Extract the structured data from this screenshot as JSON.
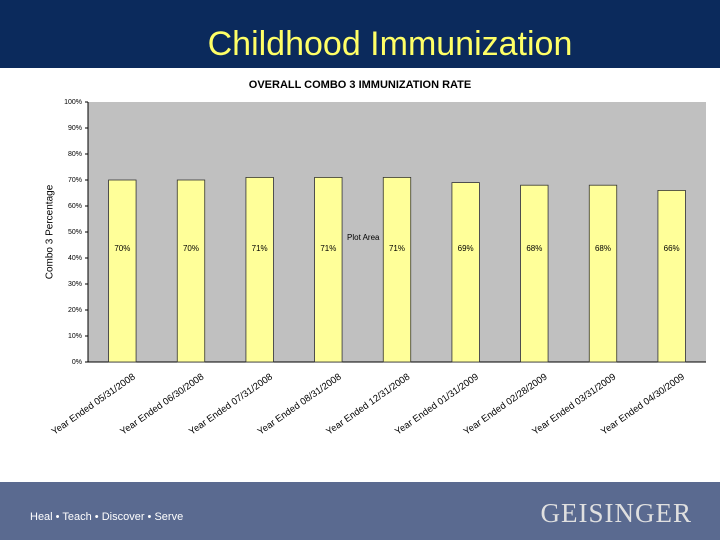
{
  "slide_title": "Childhood Immunization",
  "footer": {
    "tagline": "Heal • Teach • Discover • Serve",
    "brand": "GEISINGER"
  },
  "chart_data": {
    "type": "bar",
    "title": "OVERALL COMBO 3 IMMUNIZATION RATE",
    "y_label": "Combo 3 Percentage",
    "annotation": "Plot Area",
    "categories": [
      "Year Ended 05/31/2008",
      "Year Ended 06/30/2008",
      "Year Ended 07/31/2008",
      "Year Ended 08/31/2008",
      "Year Ended 12/31/2008",
      "Year Ended 01/31/2009",
      "Year Ended 02/28/2009",
      "Year Ended 03/31/2009",
      "Year Ended 04/30/2009"
    ],
    "values": [
      70,
      70,
      71,
      71,
      71,
      69,
      68,
      68,
      66
    ],
    "value_labels": [
      "70%",
      "70%",
      "71%",
      "71%",
      "71%",
      "69%",
      "68%",
      "68%",
      "66%"
    ],
    "color": "#ffff99",
    "ylim": [
      0,
      100
    ],
    "yticks": [
      {
        "value": 0,
        "label": "0%"
      },
      {
        "value": 10,
        "label": "10%"
      },
      {
        "value": 20,
        "label": "20%"
      },
      {
        "value": 30,
        "label": "30%"
      },
      {
        "value": 40,
        "label": "40%"
      },
      {
        "value": 50,
        "label": "50%"
      },
      {
        "value": 60,
        "label": "60%"
      },
      {
        "value": 70,
        "label": "70%"
      },
      {
        "value": 80,
        "label": "80%"
      },
      {
        "value": 90,
        "label": "90%"
      },
      {
        "value": 100,
        "label": "100%"
      }
    ],
    "grid": false
  }
}
